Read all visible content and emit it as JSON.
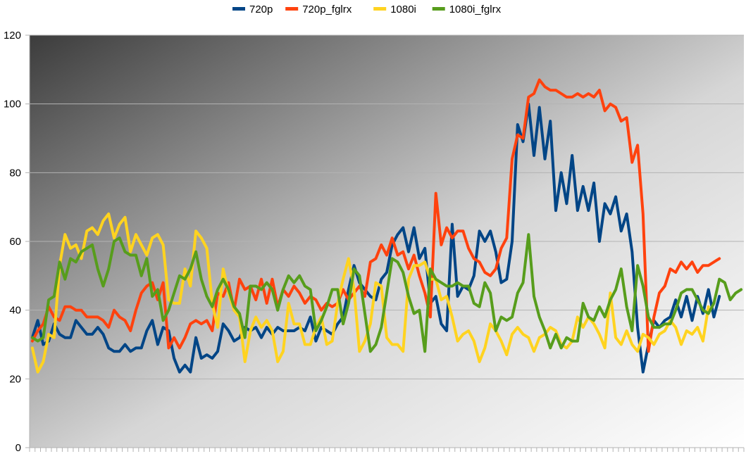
{
  "chart_data": {
    "type": "line",
    "title": "",
    "xlabel": "",
    "ylabel": "",
    "ylim": [
      0,
      120
    ],
    "y_ticks": [
      "0",
      "20",
      "40",
      "60",
      "80",
      "100",
      "120"
    ],
    "grid": "horizontal",
    "legend_position": "top",
    "series": [
      {
        "name": "720p",
        "color": "#004586",
        "values": [
          32,
          37,
          30,
          31,
          36,
          33,
          32,
          32,
          37,
          35,
          33,
          33,
          35,
          33,
          29,
          28,
          28,
          30,
          28,
          29,
          29,
          34,
          37,
          30,
          35,
          34,
          26,
          22,
          24,
          22,
          32,
          26,
          27,
          26,
          28,
          36,
          34,
          31,
          32,
          35,
          34,
          35,
          32,
          35,
          33,
          35,
          34,
          34,
          34,
          35,
          34,
          38,
          31,
          35,
          34,
          33,
          36,
          38,
          46,
          53,
          48,
          46,
          44,
          43,
          49,
          51,
          59,
          62,
          64,
          57,
          64,
          55,
          58,
          42,
          44,
          36,
          34,
          65,
          44,
          47,
          46,
          50,
          63,
          60,
          63,
          57,
          48,
          49,
          60,
          94,
          89,
          100,
          85,
          99,
          84,
          95,
          69,
          80,
          71,
          85,
          69,
          76,
          69,
          77,
          60,
          71,
          68,
          73,
          63,
          68,
          57,
          35,
          22,
          30,
          37,
          35,
          37,
          38,
          43,
          38,
          44,
          37,
          44,
          39,
          46,
          38,
          44
        ]
      },
      {
        "name": "720p_fglrx",
        "color": "#ff420e",
        "values": [
          31,
          34,
          36,
          41,
          38,
          37,
          41,
          41,
          40,
          40,
          38,
          38,
          38,
          37,
          35,
          40,
          38,
          37,
          34,
          40,
          45,
          47,
          48,
          43,
          48,
          29,
          32,
          29,
          32,
          36,
          37,
          36,
          37,
          34,
          45,
          44,
          48,
          40,
          49,
          46,
          47,
          43,
          49,
          42,
          49,
          41,
          46,
          44,
          47,
          45,
          42,
          44,
          43,
          40,
          42,
          41,
          42,
          46,
          43,
          45,
          47,
          44,
          54,
          55,
          59,
          56,
          61,
          56,
          57,
          52,
          56,
          50,
          45,
          38,
          74,
          59,
          64,
          61,
          63,
          63,
          58,
          55,
          54,
          51,
          50,
          52,
          58,
          61,
          84,
          91,
          90,
          102,
          103,
          107,
          105,
          104,
          104,
          103,
          102,
          102,
          103,
          102,
          103,
          102,
          104,
          98,
          100,
          99,
          95,
          96,
          83,
          88,
          68,
          28,
          38,
          45,
          47,
          52,
          51,
          54,
          52,
          54,
          51,
          53,
          53,
          54,
          55
        ]
      },
      {
        "name": "1080i",
        "color": "#ffd320",
        "values": [
          29,
          22,
          25,
          33,
          32,
          53,
          62,
          58,
          59,
          55,
          63,
          64,
          62,
          66,
          68,
          61,
          65,
          67,
          57,
          62,
          59,
          56,
          61,
          62,
          59,
          43,
          42,
          42,
          52,
          47,
          63,
          61,
          58,
          42,
          35,
          52,
          45,
          40,
          38,
          25,
          34,
          38,
          35,
          37,
          34,
          25,
          28,
          42,
          36,
          36,
          30,
          30,
          35,
          38,
          30,
          31,
          42,
          49,
          55,
          46,
          28,
          31,
          36,
          48,
          47,
          32,
          30,
          30,
          28,
          49,
          53,
          53,
          54,
          49,
          49,
          43,
          44,
          38,
          31,
          33,
          34,
          31,
          25,
          29,
          36,
          34,
          31,
          27,
          33,
          35,
          33,
          32,
          28,
          32,
          33,
          35,
          34,
          30,
          29,
          31,
          38,
          35,
          38,
          36,
          33,
          29,
          45,
          32,
          30,
          34,
          30,
          28,
          33,
          32,
          30,
          33,
          34,
          37,
          35,
          30,
          34,
          33,
          35,
          31,
          41
        ]
      },
      {
        "name": "1080i_fglrx",
        "color": "#579d1c",
        "values": [
          32,
          31,
          32,
          43,
          44,
          54,
          49,
          55,
          54,
          57,
          58,
          59,
          52,
          47,
          52,
          60,
          61,
          57,
          56,
          56,
          50,
          55,
          44,
          46,
          37,
          40,
          45,
          50,
          49,
          52,
          57,
          49,
          44,
          41,
          46,
          49,
          46,
          41,
          39,
          32,
          47,
          47,
          46,
          48,
          46,
          40,
          46,
          50,
          48,
          50,
          47,
          46,
          34,
          37,
          41,
          46,
          46,
          36,
          42,
          52,
          50,
          39,
          28,
          30,
          35,
          45,
          55,
          54,
          51,
          44,
          39,
          40,
          28,
          52,
          49,
          48,
          47,
          47,
          48,
          47,
          47,
          42,
          41,
          48,
          45,
          34,
          38,
          37,
          38,
          45,
          48,
          62,
          44,
          38,
          34,
          29,
          33,
          29,
          32,
          31,
          31,
          42,
          38,
          37,
          41,
          38,
          43,
          46,
          52,
          41,
          34,
          53,
          47,
          38,
          35,
          35,
          36,
          36,
          40,
          45,
          46,
          46,
          43,
          40,
          39,
          42,
          49,
          48,
          43,
          45,
          46
        ]
      }
    ]
  }
}
